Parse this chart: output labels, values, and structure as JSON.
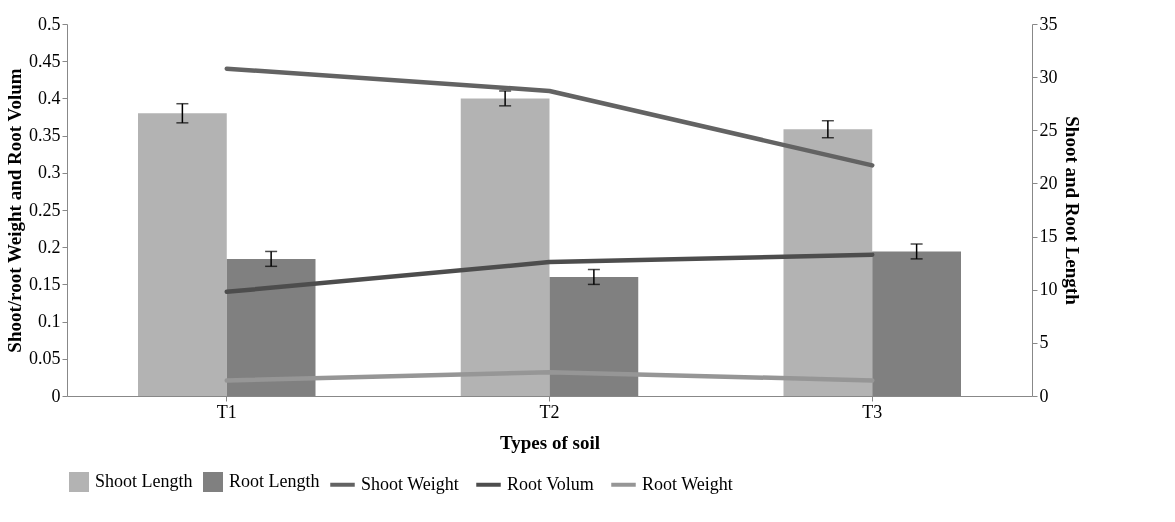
{
  "chart_data": {
    "type": "bar",
    "xlabel": "Types of soil",
    "ylabel": "Shoot/root Weight and Root Volum",
    "y2label": "Shoot and Root Length",
    "categories": [
      "T1",
      "T2",
      "T3"
    ],
    "series": [
      {
        "name": "Shoot Length",
        "axis": "y2",
        "color": "#b3b3b3",
        "values": [
          26.6,
          28.0,
          25.1
        ],
        "errors": [
          0.9,
          0.7,
          0.8
        ]
      },
      {
        "name": "Root Length",
        "axis": "y2",
        "color": "#808080",
        "values": [
          12.9,
          11.2,
          13.6
        ],
        "errors": [
          0.7,
          0.7,
          0.7
        ]
      },
      {
        "name": "Shoot Weight",
        "type": "line",
        "color": "#636363",
        "values": [
          0.44,
          0.41,
          0.31
        ]
      },
      {
        "name": "Root Volum",
        "type": "line",
        "color": "#4d4d4d",
        "values": [
          0.14,
          0.18,
          0.19
        ]
      },
      {
        "name": "Root Weight",
        "type": "line",
        "color": "#969696",
        "values": [
          0.021,
          0.032,
          0.021
        ]
      }
    ],
    "ylim": [
      0,
      0.5
    ],
    "yticks": [
      0,
      0.05,
      0.1,
      0.15,
      0.2,
      0.25,
      0.3,
      0.35,
      0.4,
      0.45,
      0.5
    ],
    "y2lim": [
      0,
      35
    ],
    "y2ticks": [
      0,
      5,
      10,
      15,
      20,
      25,
      30,
      35
    ],
    "grid": false,
    "legend": "bottom",
    "line_style": "solid",
    "marker": "none"
  }
}
